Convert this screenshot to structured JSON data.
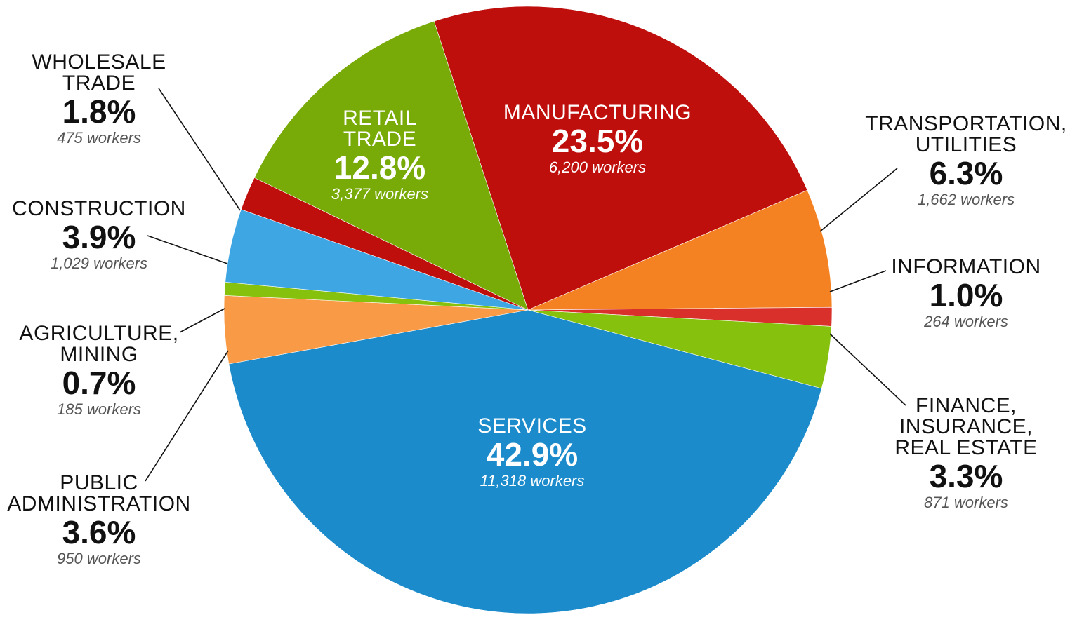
{
  "chart_data": {
    "type": "pie",
    "title": "",
    "start_angle_deg": -108,
    "slices": [
      {
        "key": "manufacturing",
        "name": [
          "MANUFACTURING"
        ],
        "percent": 23.5,
        "percent_label": "23.5%",
        "workers_label": "6,200 workers",
        "color": "#bf0f0c"
      },
      {
        "key": "transportation",
        "name": [
          "TRANSPORTATION,",
          "UTILITIES"
        ],
        "percent": 6.3,
        "percent_label": "6.3%",
        "workers_label": "1,662 workers",
        "color": "#f48223"
      },
      {
        "key": "information",
        "name": [
          "INFORMATION"
        ],
        "percent": 1.0,
        "percent_label": "1.0%",
        "workers_label": "264 workers",
        "color": "#d9302b"
      },
      {
        "key": "finance",
        "name": [
          "FINANCE,",
          "INSURANCE,",
          "REAL ESTATE"
        ],
        "percent": 3.3,
        "percent_label": "3.3%",
        "workers_label": "871 workers",
        "color": "#86c20d"
      },
      {
        "key": "services",
        "name": [
          "SERVICES"
        ],
        "percent": 42.9,
        "percent_label": "42.9%",
        "workers_label": "11,318 workers",
        "color": "#1c8bcb"
      },
      {
        "key": "public_admin",
        "name": [
          "PUBLIC",
          "ADMINISTRATION"
        ],
        "percent": 3.6,
        "percent_label": "3.6%",
        "workers_label": "950 workers",
        "color": "#f99b46"
      },
      {
        "key": "agriculture",
        "name": [
          "AGRICULTURE,",
          "MINING"
        ],
        "percent": 0.7,
        "percent_label": "0.7%",
        "workers_label": "185 workers",
        "color": "#86c20d"
      },
      {
        "key": "construction",
        "name": [
          "CONSTRUCTION"
        ],
        "percent": 3.9,
        "percent_label": "3.9%",
        "workers_label": "1,029 workers",
        "color": "#3ea6e3"
      },
      {
        "key": "wholesale",
        "name": [
          "WHOLESALE",
          "TRADE"
        ],
        "percent": 1.8,
        "percent_label": "1.8%",
        "workers_label": "475 workers",
        "color": "#bf0f0c"
      },
      {
        "key": "retail",
        "name": [
          "RETAIL",
          "TRADE"
        ],
        "percent": 12.8,
        "percent_label": "12.8%",
        "workers_label": "3,377 workers",
        "color": "#78aa08"
      }
    ]
  }
}
